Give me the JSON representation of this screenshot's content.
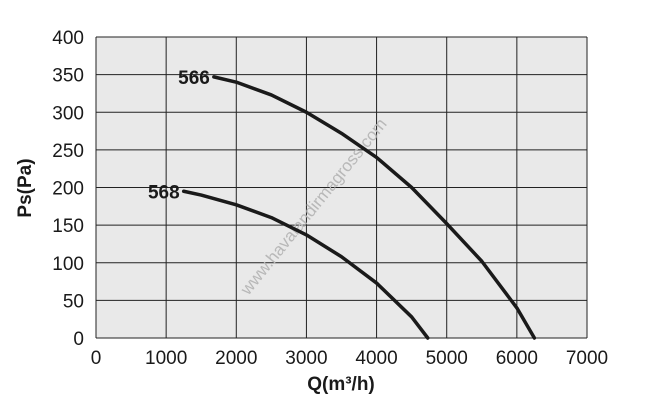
{
  "chart_data": {
    "type": "line",
    "xlabel": "Q(m³/h)",
    "ylabel": "Ps(Pa)",
    "xlim": [
      0,
      7000
    ],
    "ylim": [
      0,
      400
    ],
    "xticks": [
      "0",
      "1000",
      "2000",
      "3000",
      "4000",
      "5000",
      "6000",
      "7000"
    ],
    "yticks": [
      "0",
      "50",
      "100",
      "150",
      "200",
      "250",
      "300",
      "350",
      "400"
    ],
    "grid": true,
    "series": [
      {
        "name": "566",
        "x": [
          1680,
          2000,
          2500,
          3000,
          3500,
          4000,
          4500,
          5000,
          5500,
          6000,
          6250
        ],
        "y": [
          347,
          340,
          323,
          300,
          272,
          240,
          200,
          152,
          102,
          40,
          0
        ]
      },
      {
        "name": "568",
        "x": [
          1250,
          1500,
          2000,
          2500,
          3000,
          3500,
          4000,
          4500,
          4730
        ],
        "y": [
          195,
          190,
          177,
          160,
          137,
          108,
          73,
          28,
          0
        ]
      }
    ]
  },
  "watermark": "www.havalandirmagross.com"
}
